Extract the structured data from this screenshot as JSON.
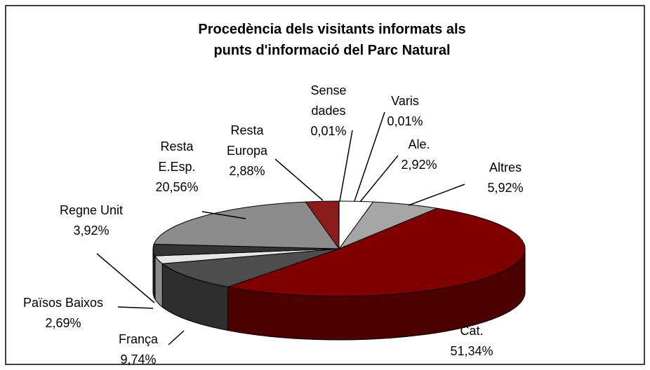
{
  "chart_data": {
    "type": "pie3d",
    "title": "Procedència dels visitants informats als punts d'informació del Parc Natural",
    "categories": [
      "Varis",
      "Ale.",
      "Altres",
      "Cat.",
      "França",
      "Països Baixos",
      "Regne Unit",
      "Resta E.Esp.",
      "Resta Europa",
      "Sense dades"
    ],
    "values": [
      0.01,
      2.92,
      5.92,
      51.34,
      9.74,
      2.69,
      3.92,
      20.56,
      2.88,
      0.01
    ],
    "value_labels": [
      "0,01%",
      "2,92%",
      "5,92%",
      "51,34%",
      "9,74%",
      "2,69%",
      "3,92%",
      "20,56%",
      "2,88%",
      "0,01%"
    ],
    "colors": [
      "#ffffff",
      "#ffffff",
      "#a6a6a6",
      "#800000",
      "#4d4d4d",
      "#e6e6e6",
      "#333333",
      "#8c8c8c",
      "#8b1a1a",
      "#ffffff"
    ]
  }
}
